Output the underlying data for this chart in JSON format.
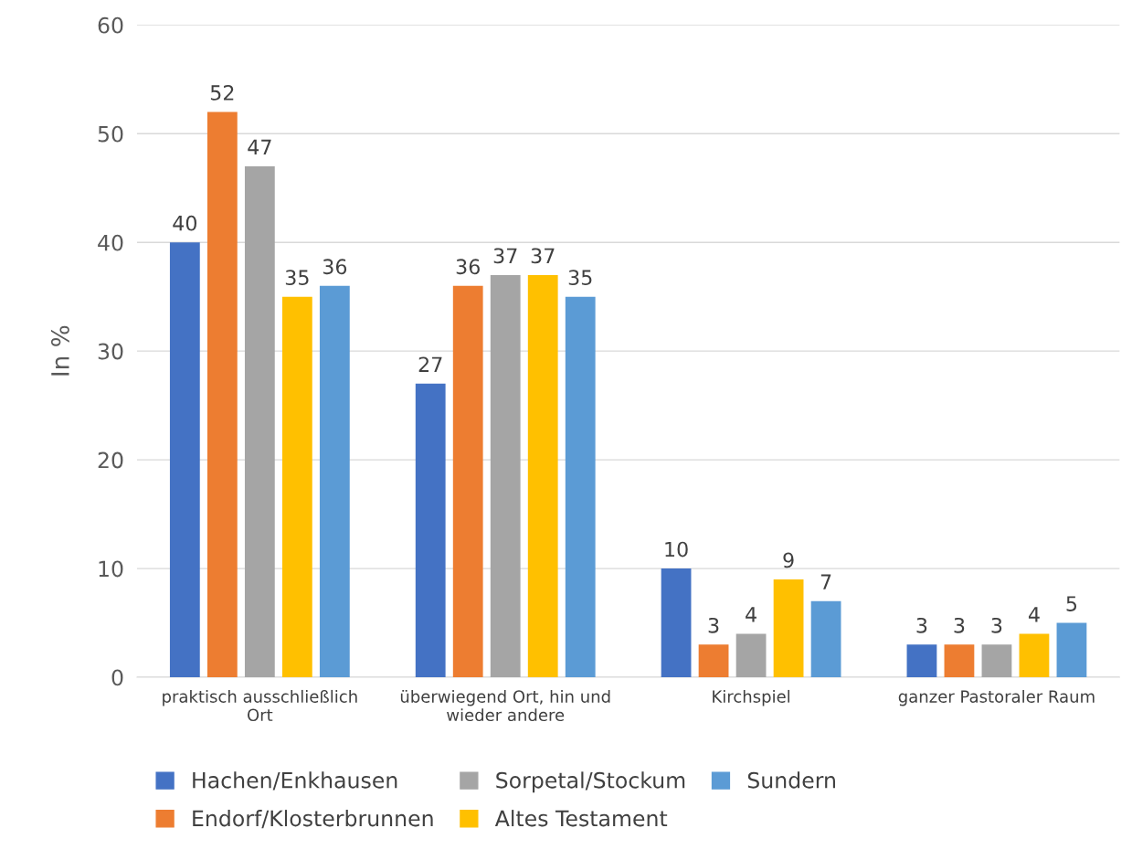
{
  "chart_data": {
    "type": "bar",
    "ylabel": "In %",
    "categories": [
      "praktisch ausschließlich Ort",
      "überwiegend Ort, hin und wieder andere",
      "Kirchspiel",
      "ganzer Pastoraler Raum"
    ],
    "series": [
      {
        "name": "Hachen/Enkhausen",
        "color": "#4472c4",
        "values": [
          40,
          27,
          10,
          3
        ]
      },
      {
        "name": "Endorf/Klosterbrunnen",
        "color": "#ed7d31",
        "values": [
          52,
          36,
          3,
          3
        ]
      },
      {
        "name": "Sorpetal/Stockum",
        "color": "#a5a5a5",
        "values": [
          47,
          37,
          4,
          3
        ]
      },
      {
        "name": "Altes Testament",
        "color": "#ffc000",
        "values": [
          35,
          37,
          9,
          4
        ]
      },
      {
        "name": "Sundern",
        "color": "#5b9bd5",
        "values": [
          36,
          35,
          7,
          5
        ]
      }
    ],
    "ylim": [
      0,
      60
    ],
    "yticks": [
      0,
      10,
      20,
      30,
      40,
      50,
      60
    ],
    "grid": "y",
    "legend": "bottom",
    "data_labels": true
  }
}
